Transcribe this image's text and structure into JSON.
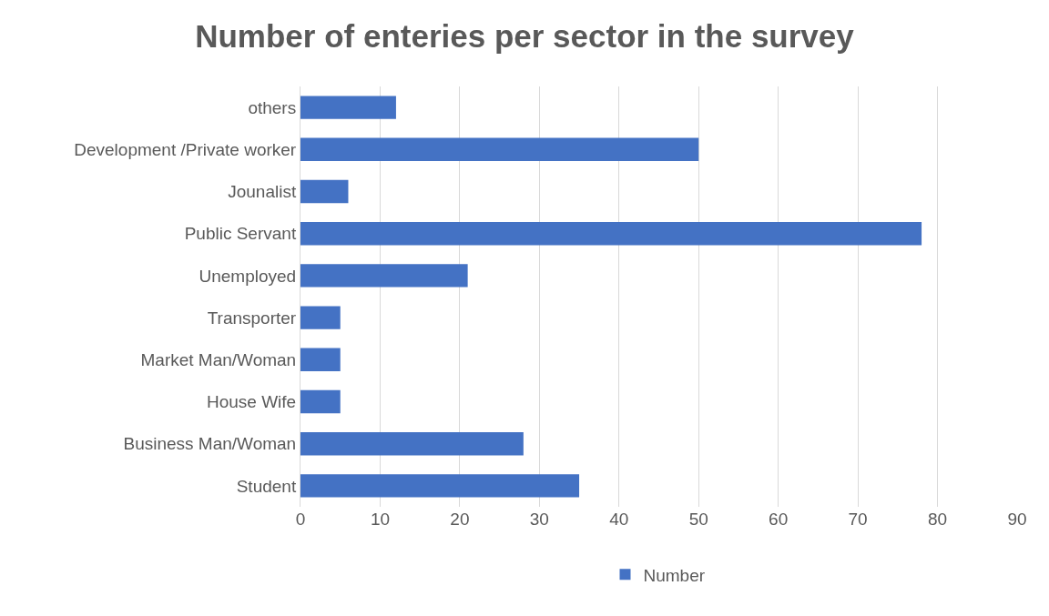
{
  "chart_data": {
    "type": "bar",
    "orientation": "horizontal",
    "title": "Number of enteries per sector in the survey",
    "categories": [
      "others",
      "Development /Private worker",
      "Jounalist",
      "Public Servant",
      "Unemployed",
      "Transporter",
      "Market Man/Woman",
      "House Wife",
      "Business Man/Woman",
      "Student"
    ],
    "series": [
      {
        "name": "Number",
        "color": "#4472c4",
        "values": [
          12,
          50,
          6,
          78,
          21,
          5,
          5,
          5,
          28,
          35
        ]
      }
    ],
    "xlim": [
      0,
      90
    ],
    "xticks": [
      0,
      10,
      20,
      30,
      40,
      50,
      60,
      70,
      80,
      90
    ],
    "grid": "x",
    "legend": "bottom"
  }
}
